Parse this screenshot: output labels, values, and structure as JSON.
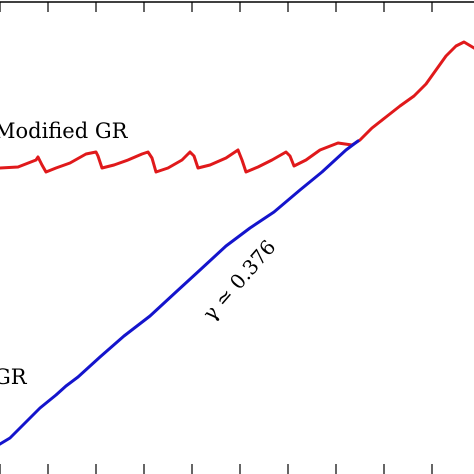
{
  "chart_data": {
    "type": "line",
    "title": "",
    "xlabel": "",
    "ylabel": "",
    "grid": false,
    "legend": "none",
    "series": [
      {
        "name": "Modified GR",
        "color": "#e0191b",
        "points": [
          [
            0,
            168
          ],
          [
            18,
            167
          ],
          [
            36,
            160
          ],
          [
            38,
            157
          ],
          [
            42,
            165
          ],
          [
            46,
            172
          ],
          [
            56,
            168
          ],
          [
            70,
            163
          ],
          [
            86,
            154
          ],
          [
            96,
            152
          ],
          [
            98,
            156
          ],
          [
            102,
            168
          ],
          [
            114,
            165
          ],
          [
            128,
            160
          ],
          [
            142,
            154
          ],
          [
            148,
            152
          ],
          [
            152,
            158
          ],
          [
            156,
            172
          ],
          [
            168,
            168
          ],
          [
            182,
            160
          ],
          [
            190,
            152
          ],
          [
            194,
            156
          ],
          [
            198,
            168
          ],
          [
            210,
            165
          ],
          [
            226,
            158
          ],
          [
            238,
            150
          ],
          [
            242,
            160
          ],
          [
            246,
            172
          ],
          [
            258,
            167
          ],
          [
            272,
            160
          ],
          [
            286,
            152
          ],
          [
            290,
            156
          ],
          [
            294,
            166
          ],
          [
            306,
            160
          ],
          [
            320,
            150
          ],
          [
            338,
            143
          ],
          [
            352,
            145
          ],
          [
            360,
            140
          ],
          [
            372,
            128
          ],
          [
            386,
            117
          ],
          [
            400,
            106
          ],
          [
            414,
            96
          ],
          [
            426,
            84
          ],
          [
            436,
            70
          ],
          [
            446,
            56
          ],
          [
            456,
            46
          ],
          [
            464,
            42
          ],
          [
            474,
            48
          ]
        ]
      },
      {
        "name": "GR",
        "color": "#1414cc",
        "points": [
          [
            0,
            444
          ],
          [
            10,
            438
          ],
          [
            24,
            424
          ],
          [
            40,
            408
          ],
          [
            56,
            395
          ],
          [
            66,
            386
          ],
          [
            78,
            377
          ],
          [
            100,
            357
          ],
          [
            124,
            336
          ],
          [
            150,
            316
          ],
          [
            176,
            292
          ],
          [
            200,
            270
          ],
          [
            226,
            246
          ],
          [
            250,
            228
          ],
          [
            274,
            212
          ],
          [
            300,
            190
          ],
          [
            322,
            172
          ],
          [
            346,
            150
          ],
          [
            358,
            141
          ]
        ]
      }
    ],
    "annotations": [
      {
        "id": "modified",
        "text": "Modified GR"
      },
      {
        "id": "gr",
        "text": "GR"
      },
      {
        "id": "slope",
        "text": "γ ≃ 0.376"
      }
    ]
  }
}
